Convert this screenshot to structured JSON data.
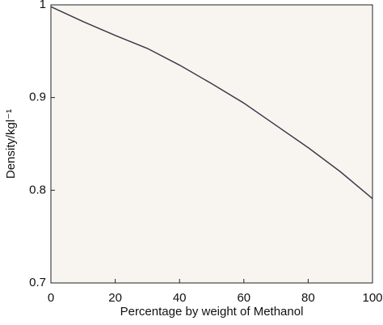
{
  "chart_data": {
    "type": "line",
    "xlabel": "Percentage by weight of Methanol",
    "ylabel": "Density/kgl⁻¹",
    "x": [
      0,
      10,
      20,
      30,
      40,
      50,
      60,
      70,
      80,
      90,
      100
    ],
    "series": [
      {
        "name": "Density",
        "color": "#3a3a4a",
        "values": [
          0.998,
          0.982,
          0.967,
          0.953,
          0.935,
          0.915,
          0.894,
          0.87,
          0.846,
          0.82,
          0.791
        ]
      }
    ],
    "xlim": [
      0,
      100
    ],
    "ylim": [
      0.7,
      1
    ],
    "xticks": [
      0,
      20,
      40,
      60,
      80,
      100
    ],
    "yticks": [
      0.7,
      0.8,
      0.9,
      1
    ],
    "background": "#f8f5f0"
  }
}
